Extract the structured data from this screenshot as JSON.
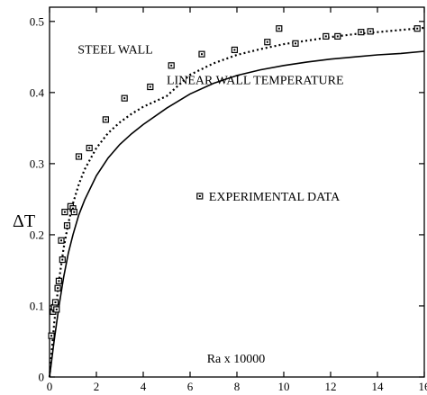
{
  "chart_data": {
    "type": "scatter",
    "xlabel": "Ra x 10000",
    "ylabel": "ΔT",
    "xlim": [
      0,
      16
    ],
    "ylim": [
      0,
      0.52
    ],
    "x_ticks": [
      0,
      2,
      4,
      6,
      8,
      10,
      12,
      14,
      16
    ],
    "y_ticks": [
      0,
      0.1,
      0.2,
      0.3,
      0.4,
      0.5
    ],
    "grid": false,
    "series": [
      {
        "name": "EXPERIMENTAL DATA",
        "kind": "markers",
        "marker": "square-dot",
        "points": [
          {
            "x": 0.08,
            "y": 0.058
          },
          {
            "x": 0.15,
            "y": 0.092
          },
          {
            "x": 0.2,
            "y": 0.098
          },
          {
            "x": 0.25,
            "y": 0.105
          },
          {
            "x": 0.3,
            "y": 0.095
          },
          {
            "x": 0.35,
            "y": 0.125
          },
          {
            "x": 0.4,
            "y": 0.135
          },
          {
            "x": 0.5,
            "y": 0.192
          },
          {
            "x": 0.55,
            "y": 0.165
          },
          {
            "x": 0.65,
            "y": 0.232
          },
          {
            "x": 0.75,
            "y": 0.213
          },
          {
            "x": 0.9,
            "y": 0.24
          },
          {
            "x": 1.0,
            "y": 0.237
          },
          {
            "x": 1.05,
            "y": 0.232
          },
          {
            "x": 1.25,
            "y": 0.31
          },
          {
            "x": 1.7,
            "y": 0.322
          },
          {
            "x": 2.4,
            "y": 0.362
          },
          {
            "x": 3.2,
            "y": 0.392
          },
          {
            "x": 4.3,
            "y": 0.408
          },
          {
            "x": 5.2,
            "y": 0.438
          },
          {
            "x": 6.5,
            "y": 0.454
          },
          {
            "x": 7.9,
            "y": 0.46
          },
          {
            "x": 9.3,
            "y": 0.471
          },
          {
            "x": 9.8,
            "y": 0.49
          },
          {
            "x": 10.5,
            "y": 0.469
          },
          {
            "x": 11.8,
            "y": 0.479
          },
          {
            "x": 12.3,
            "y": 0.479
          },
          {
            "x": 13.3,
            "y": 0.485
          },
          {
            "x": 13.7,
            "y": 0.486
          },
          {
            "x": 15.7,
            "y": 0.49
          }
        ]
      },
      {
        "name": "STEEL WALL",
        "kind": "line",
        "style": "dotted",
        "x": [
          0,
          0.2,
          0.4,
          0.6,
          0.8,
          1,
          1.25,
          1.5,
          2,
          2.5,
          3,
          3.5,
          4,
          5,
          6,
          7,
          8,
          9,
          10,
          11,
          12,
          13,
          14,
          15,
          16
        ],
        "y": [
          0,
          0.076,
          0.135,
          0.181,
          0.216,
          0.244,
          0.271,
          0.292,
          0.322,
          0.343,
          0.358,
          0.37,
          0.38,
          0.395,
          0.425,
          0.441,
          0.453,
          0.461,
          0.468,
          0.473,
          0.478,
          0.482,
          0.485,
          0.488,
          0.491
        ]
      },
      {
        "name": "LINEAR WALL TEMPERATURE",
        "kind": "line",
        "style": "solid",
        "x": [
          0,
          0.2,
          0.4,
          0.6,
          0.8,
          1,
          1.25,
          1.5,
          2,
          2.5,
          3,
          3.5,
          4,
          5,
          6,
          7,
          8,
          9,
          10,
          11,
          12,
          13,
          14,
          15,
          16
        ],
        "y": [
          0,
          0.052,
          0.099,
          0.14,
          0.174,
          0.2,
          0.228,
          0.249,
          0.283,
          0.308,
          0.327,
          0.342,
          0.355,
          0.378,
          0.398,
          0.413,
          0.424,
          0.432,
          0.438,
          0.443,
          0.447,
          0.45,
          0.453,
          0.455,
          0.458
        ]
      }
    ],
    "annotations": [
      {
        "text": "STEEL WALL",
        "x": 1.2,
        "y": 0.455
      },
      {
        "text": "LINEAR WALL TEMPERATURE",
        "x": 5.0,
        "y": 0.412
      },
      {
        "text": "EXPERIMENTAL DATA",
        "x": 6.8,
        "y": 0.248,
        "with_marker": true
      }
    ]
  }
}
